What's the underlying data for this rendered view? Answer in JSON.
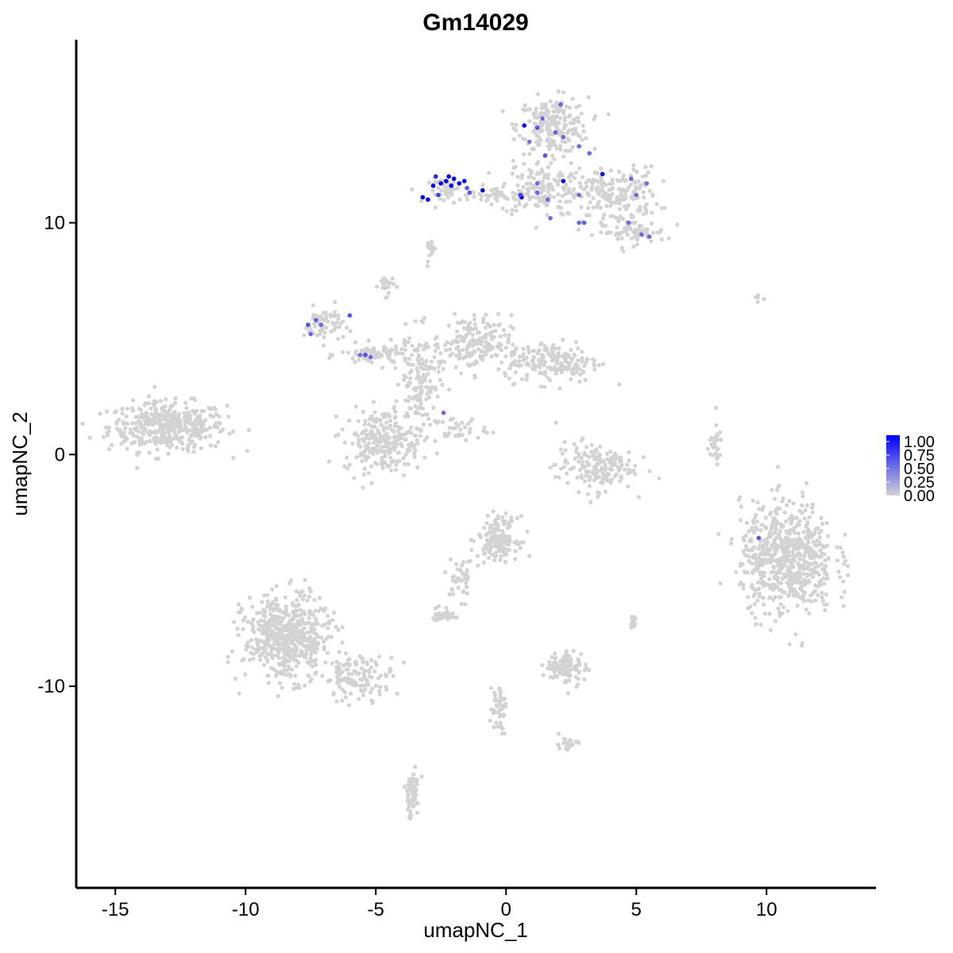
{
  "chart_data": {
    "type": "scatter",
    "title": "Gm14029",
    "xlabel": "umapNC_1",
    "ylabel": "umapNC_2",
    "xlim": [
      -16.5,
      14.2
    ],
    "ylim": [
      -18.7,
      17.9
    ],
    "x_ticks": [
      -15,
      -10,
      -5,
      0,
      5,
      10
    ],
    "y_ticks": [
      -10,
      0,
      10
    ],
    "x_tick_labels": [
      "-15",
      "-10",
      "-5",
      "0",
      "5",
      "10"
    ],
    "y_tick_labels": [
      "-10",
      "0",
      "10"
    ],
    "legend": {
      "title": "",
      "position": "right",
      "breaks": [
        "1.00",
        "0.75",
        "0.50",
        "0.25",
        "0.00"
      ],
      "low_color": "#d3d3d3",
      "high_color": "#0000ff"
    },
    "clusters": [
      {
        "cx": -13.0,
        "cy": 1.2,
        "sx": 1.5,
        "sy": 0.7,
        "n": 420
      },
      {
        "cx": 1.8,
        "cy": 14.2,
        "sx": 0.9,
        "sy": 0.8,
        "n": 220
      },
      {
        "cx": 1.3,
        "cy": 11.5,
        "sx": 1.0,
        "sy": 0.8,
        "n": 150
      },
      {
        "cx": 4.2,
        "cy": 11.2,
        "sx": 1.1,
        "sy": 0.8,
        "n": 180
      },
      {
        "cx": 4.8,
        "cy": 9.6,
        "sx": 0.9,
        "sy": 0.35,
        "n": 70
      },
      {
        "cx": -2.2,
        "cy": 11.4,
        "sx": 0.5,
        "sy": 0.35,
        "n": 50
      },
      {
        "cx": -0.2,
        "cy": 11.2,
        "sx": 0.8,
        "sy": 0.15,
        "n": 40
      },
      {
        "cx": -2.9,
        "cy": 8.9,
        "sx": 0.12,
        "sy": 0.35,
        "n": 15
      },
      {
        "cx": -4.6,
        "cy": 7.3,
        "sx": 0.2,
        "sy": 0.3,
        "n": 25
      },
      {
        "cx": -7.0,
        "cy": 5.6,
        "sx": 0.5,
        "sy": 0.5,
        "n": 60
      },
      {
        "cx": -5.0,
        "cy": 4.3,
        "sx": 0.9,
        "sy": 0.3,
        "n": 80
      },
      {
        "cx": -3.3,
        "cy": 3.2,
        "sx": 0.5,
        "sy": 1.3,
        "n": 140
      },
      {
        "cx": -1.3,
        "cy": 4.8,
        "sx": 1.0,
        "sy": 0.8,
        "n": 180
      },
      {
        "cx": 1.8,
        "cy": 4.0,
        "sx": 1.2,
        "sy": 0.6,
        "n": 180
      },
      {
        "cx": -4.7,
        "cy": 0.6,
        "sx": 1.0,
        "sy": 0.9,
        "n": 250
      },
      {
        "cx": -1.8,
        "cy": 1.1,
        "sx": 0.7,
        "sy": 0.35,
        "n": 35
      },
      {
        "cx": 3.4,
        "cy": -0.5,
        "sx": 1.0,
        "sy": 0.7,
        "n": 170
      },
      {
        "cx": 8.0,
        "cy": 0.4,
        "sx": 0.2,
        "sy": 0.6,
        "n": 30
      },
      {
        "cx": 10.8,
        "cy": -4.5,
        "sx": 1.2,
        "sy": 1.6,
        "n": 650
      },
      {
        "cx": -0.3,
        "cy": -3.6,
        "sx": 0.5,
        "sy": 0.6,
        "n": 160
      },
      {
        "cx": -1.7,
        "cy": -5.4,
        "sx": 0.35,
        "sy": 0.6,
        "n": 40
      },
      {
        "cx": -8.4,
        "cy": -7.9,
        "sx": 1.1,
        "sy": 1.2,
        "n": 560
      },
      {
        "cx": -5.6,
        "cy": -9.6,
        "sx": 0.9,
        "sy": 0.6,
        "n": 120
      },
      {
        "cx": -2.4,
        "cy": -6.9,
        "sx": 0.3,
        "sy": 0.2,
        "n": 30
      },
      {
        "cx": 2.3,
        "cy": -9.2,
        "sx": 0.5,
        "sy": 0.5,
        "n": 100
      },
      {
        "cx": 4.9,
        "cy": -7.2,
        "sx": 0.1,
        "sy": 0.2,
        "n": 12
      },
      {
        "cx": -0.3,
        "cy": -10.9,
        "sx": 0.2,
        "sy": 0.7,
        "n": 45
      },
      {
        "cx": 2.3,
        "cy": -12.5,
        "sx": 0.3,
        "sy": 0.2,
        "n": 25
      },
      {
        "cx": -3.6,
        "cy": -14.6,
        "sx": 0.2,
        "sy": 0.7,
        "n": 60
      },
      {
        "cx": 9.6,
        "cy": 6.8,
        "sx": 0.2,
        "sy": 0.12,
        "n": 5
      }
    ],
    "expressing_cells": [
      {
        "x": 0.7,
        "y": 14.2,
        "value": 1.0
      },
      {
        "x": 1.2,
        "y": 14.1,
        "value": 0.6
      },
      {
        "x": 1.4,
        "y": 14.5,
        "value": 0.5
      },
      {
        "x": 2.1,
        "y": 15.1,
        "value": 0.5
      },
      {
        "x": 1.9,
        "y": 13.9,
        "value": 0.55
      },
      {
        "x": 2.2,
        "y": 13.7,
        "value": 0.5
      },
      {
        "x": 0.9,
        "y": 13.5,
        "value": 0.45
      },
      {
        "x": 1.5,
        "y": 12.9,
        "value": 0.6
      },
      {
        "x": 2.8,
        "y": 13.3,
        "value": 0.5
      },
      {
        "x": 3.2,
        "y": 13.0,
        "value": 0.5
      },
      {
        "x": 3.7,
        "y": 12.1,
        "value": 1.0
      },
      {
        "x": 4.8,
        "y": 11.9,
        "value": 0.5
      },
      {
        "x": 5.4,
        "y": 11.7,
        "value": 0.5
      },
      {
        "x": 5.0,
        "y": 11.2,
        "value": 0.5
      },
      {
        "x": 4.7,
        "y": 10.0,
        "value": 0.5
      },
      {
        "x": 5.2,
        "y": 9.5,
        "value": 0.5
      },
      {
        "x": 5.5,
        "y": 9.4,
        "value": 0.5
      },
      {
        "x": 3.0,
        "y": 10.0,
        "value": 0.55
      },
      {
        "x": 2.8,
        "y": 10.0,
        "value": 0.5
      },
      {
        "x": 2.8,
        "y": 11.2,
        "value": 0.5
      },
      {
        "x": 2.2,
        "y": 11.8,
        "value": 1.0
      },
      {
        "x": 1.6,
        "y": 11.0,
        "value": 0.5
      },
      {
        "x": 1.2,
        "y": 11.7,
        "value": 0.5
      },
      {
        "x": 1.2,
        "y": 11.3,
        "value": 0.5
      },
      {
        "x": 0.6,
        "y": 11.1,
        "value": 1.0
      },
      {
        "x": 0.55,
        "y": 11.2,
        "value": 0.7
      },
      {
        "x": 1.7,
        "y": 10.2,
        "value": 0.5
      },
      {
        "x": -0.9,
        "y": 11.4,
        "value": 1.0
      },
      {
        "x": -1.5,
        "y": 11.5,
        "value": 0.6
      },
      {
        "x": -1.4,
        "y": 11.3,
        "value": 0.6
      },
      {
        "x": -1.6,
        "y": 11.8,
        "value": 1.0
      },
      {
        "x": -1.8,
        "y": 11.7,
        "value": 1.0
      },
      {
        "x": -2.1,
        "y": 11.6,
        "value": 1.0
      },
      {
        "x": -2.3,
        "y": 11.8,
        "value": 1.0
      },
      {
        "x": -2.5,
        "y": 11.7,
        "value": 1.0
      },
      {
        "x": -2.7,
        "y": 12.0,
        "value": 0.8
      },
      {
        "x": -2.2,
        "y": 12.0,
        "value": 1.0
      },
      {
        "x": -2.0,
        "y": 11.9,
        "value": 1.0
      },
      {
        "x": -2.8,
        "y": 11.6,
        "value": 1.0
      },
      {
        "x": -3.0,
        "y": 11.0,
        "value": 1.0
      },
      {
        "x": -3.2,
        "y": 11.1,
        "value": 1.0
      },
      {
        "x": -2.6,
        "y": 11.2,
        "value": 0.7
      },
      {
        "x": -7.6,
        "y": 5.6,
        "value": 0.6
      },
      {
        "x": -7.3,
        "y": 5.8,
        "value": 0.55
      },
      {
        "x": -7.1,
        "y": 5.6,
        "value": 0.5
      },
      {
        "x": -7.5,
        "y": 5.2,
        "value": 0.5
      },
      {
        "x": -6.0,
        "y": 6.0,
        "value": 0.6
      },
      {
        "x": -5.4,
        "y": 4.3,
        "value": 0.6
      },
      {
        "x": -5.2,
        "y": 4.2,
        "value": 0.5
      },
      {
        "x": -5.6,
        "y": 4.3,
        "value": 0.45
      },
      {
        "x": -2.4,
        "y": 1.8,
        "value": 0.5
      },
      {
        "x": 9.7,
        "y": -3.6,
        "value": 0.6
      }
    ]
  }
}
